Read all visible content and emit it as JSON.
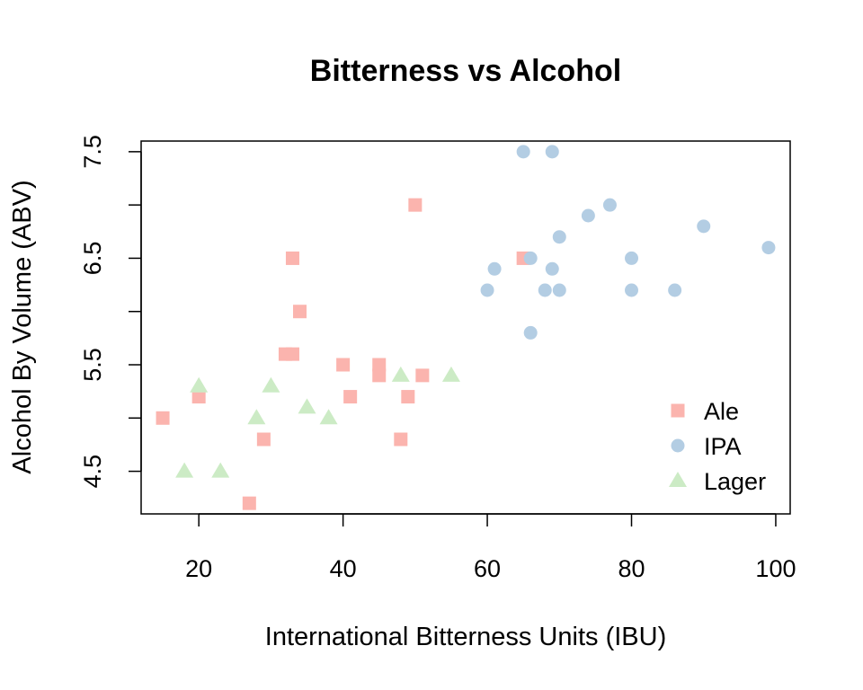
{
  "chart_data": {
    "type": "scatter",
    "title": "Bitterness vs Alcohol",
    "xlabel": "International Bitterness Units (IBU)",
    "ylabel": "Alcohol By Volume (ABV)",
    "xlim": [
      12,
      102
    ],
    "ylim": [
      4.1,
      7.6
    ],
    "x_ticks": [
      20,
      40,
      60,
      80,
      100
    ],
    "y_ticks": [
      4.5,
      5.0,
      5.5,
      6.0,
      6.5,
      7.0,
      7.5
    ],
    "y_tick_labels": [
      "4.5",
      "",
      "5.5",
      "",
      "6.5",
      "",
      "7.5"
    ],
    "grid": false,
    "legend_position": "bottom-right",
    "series": [
      {
        "name": "Ale",
        "marker": "square",
        "color": "#FBB4AE",
        "points": [
          [
            15,
            5.0
          ],
          [
            20,
            5.2
          ],
          [
            27,
            4.2
          ],
          [
            29,
            4.8
          ],
          [
            32,
            5.6
          ],
          [
            33,
            5.6
          ],
          [
            33,
            6.5
          ],
          [
            34,
            6.0
          ],
          [
            40,
            5.5
          ],
          [
            41,
            5.2
          ],
          [
            45,
            5.5
          ],
          [
            45,
            5.4
          ],
          [
            48,
            4.8
          ],
          [
            49,
            5.2
          ],
          [
            50,
            7.0
          ],
          [
            51,
            5.4
          ],
          [
            65,
            6.5
          ]
        ]
      },
      {
        "name": "IPA",
        "marker": "circle",
        "color": "#B3CDE3",
        "points": [
          [
            60,
            6.2
          ],
          [
            61,
            6.4
          ],
          [
            65,
            7.5
          ],
          [
            66,
            6.5
          ],
          [
            66,
            5.8
          ],
          [
            68,
            6.2
          ],
          [
            69,
            7.5
          ],
          [
            69,
            6.4
          ],
          [
            70,
            6.7
          ],
          [
            70,
            6.2
          ],
          [
            74,
            6.9
          ],
          [
            77,
            7.0
          ],
          [
            80,
            6.5
          ],
          [
            80,
            6.2
          ],
          [
            86,
            6.2
          ],
          [
            90,
            6.8
          ],
          [
            99,
            6.6
          ]
        ]
      },
      {
        "name": "Lager",
        "marker": "triangle",
        "color": "#CCEBC5",
        "points": [
          [
            18,
            4.5
          ],
          [
            20,
            5.3
          ],
          [
            23,
            4.5
          ],
          [
            28,
            5.0
          ],
          [
            30,
            5.3
          ],
          [
            35,
            5.1
          ],
          [
            38,
            5.0
          ],
          [
            48,
            5.4
          ],
          [
            55,
            5.4
          ]
        ]
      }
    ]
  }
}
